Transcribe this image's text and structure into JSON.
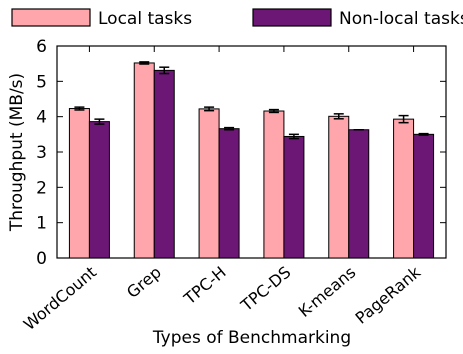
{
  "chart_data": {
    "type": "bar",
    "categories": [
      "WordCount",
      "Grep",
      "TPC-H",
      "TPC-DS",
      "K-means",
      "PageRank"
    ],
    "series": [
      {
        "name": "Local tasks",
        "color": "#ffa5ac",
        "values": [
          4.23,
          5.52,
          4.22,
          4.16,
          4.01,
          3.93
        ],
        "errors": [
          0.04,
          0.03,
          0.05,
          0.04,
          0.07,
          0.1
        ]
      },
      {
        "name": "Non-local tasks",
        "color": "#6c1776",
        "values": [
          3.86,
          5.31,
          3.66,
          3.44,
          3.63,
          3.5
        ],
        "errors": [
          0.07,
          0.09,
          0.03,
          0.06,
          0.0,
          0.02
        ]
      }
    ],
    "xlabel": "Types of Benchmarking",
    "ylabel": "Throughput (MB/s)",
    "ylim": [
      0,
      6
    ],
    "yticks": [
      "0",
      "1",
      "2",
      "3",
      "4",
      "5",
      "6"
    ],
    "legend_position": "top",
    "grid": false
  }
}
